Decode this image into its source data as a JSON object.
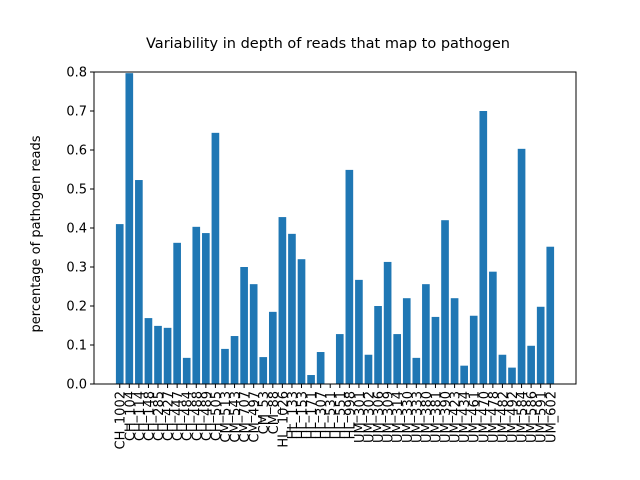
{
  "chart_data": {
    "type": "bar",
    "title": "Variability in depth of reads that map to pathogen",
    "y_label": "percentage of pathogen reads",
    "categories": [
      "CH_1002",
      "CH_104",
      "CH_114",
      "CH_148",
      "CH_285",
      "CH_427",
      "CH_447",
      "CH_484",
      "CH_488",
      "CH_489",
      "CH_505",
      "CM_513",
      "CM_543",
      "CM_707",
      "CM_497",
      "CM_53",
      "CM_88",
      "HL_1026",
      "HL_133",
      "HL_153",
      "HL_171",
      "HL_307",
      "HL_531",
      "HL_551",
      "HL_998",
      "UM_301",
      "UM_302",
      "UM_306",
      "UM_309",
      "UM_314",
      "UM_330",
      "UM_333",
      "UM_380",
      "UM_381",
      "UM_390",
      "UM_423",
      "UM_434",
      "UM_461",
      "UM_470",
      "UM_478",
      "UM_482",
      "UM_492",
      "UM_584",
      "UM_586",
      "UM_591",
      "UM_602"
    ],
    "values": [
      0.41,
      0.797,
      0.523,
      0.169,
      0.149,
      0.144,
      0.362,
      0.067,
      0.403,
      0.387,
      0.644,
      0.09,
      0.123,
      0.3,
      0.256,
      0.069,
      0.185,
      0.428,
      0.385,
      0.32,
      0.023,
      0.082,
      0,
      0.128,
      0.549,
      0.267,
      0.075,
      0.2,
      0.313,
      0.128,
      0.22,
      0.067,
      0.256,
      0.172,
      0.42,
      0.22,
      0.047,
      0.175,
      0.7,
      0.288,
      0.075,
      0.042,
      0.603,
      0.098,
      0.198,
      0.352
    ],
    "color": "#1f77b4",
    "ylim": [
      0,
      0.8
    ],
    "yticks": [
      {
        "value": 0,
        "label": "0.0"
      },
      0.1,
      0.2,
      0.3,
      0.4,
      0.5,
      0.6,
      0.7,
      0.8
    ]
  }
}
